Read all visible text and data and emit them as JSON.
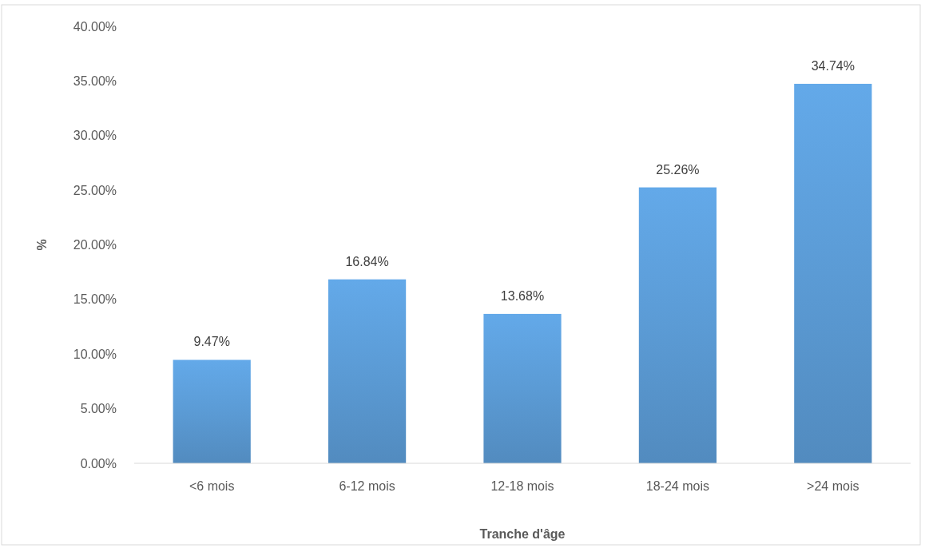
{
  "chart_data": {
    "type": "bar",
    "xlabel": "Tranche d'âge",
    "ylabel": "%",
    "categories": [
      "<6 mois",
      "6-12 mois",
      "12-18 mois",
      "18-24 mois",
      ">24 mois"
    ],
    "values": [
      9.47,
      16.84,
      13.68,
      25.26,
      34.74
    ],
    "value_labels": [
      "9.47%",
      "16.84%",
      "13.68%",
      "25.26%",
      "34.74%"
    ],
    "color": "#5b9bd5",
    "ylim": [
      0,
      40
    ],
    "yticks": [
      {
        "value": 0,
        "label": "0.00%"
      },
      {
        "value": 5,
        "label": "5.00%"
      },
      {
        "value": 10,
        "label": "10.00%"
      },
      {
        "value": 15,
        "label": "15.00%"
      },
      {
        "value": 20,
        "label": "20.00%"
      },
      {
        "value": 25,
        "label": "25.00%"
      },
      {
        "value": 30,
        "label": "30.00%"
      },
      {
        "value": 35,
        "label": "35.00%"
      },
      {
        "value": 40,
        "label": "40.00%"
      }
    ],
    "grid": false
  }
}
